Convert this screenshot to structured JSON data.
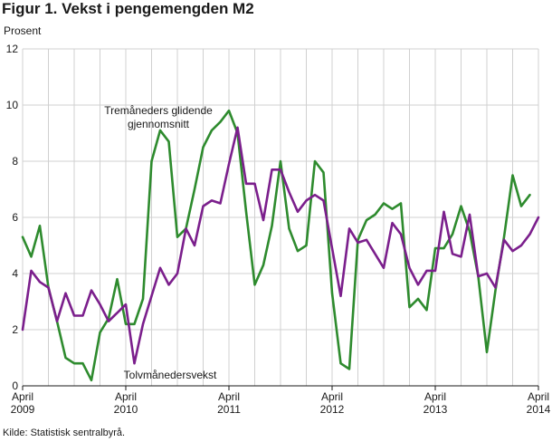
{
  "title": "Figur 1. Vekst i pengemengden M2",
  "source": "Kilde: Statistisk sentralbyrå.",
  "chart_data": {
    "type": "line",
    "title": "Figur 1. Vekst i pengemengden M2",
    "ylabel": "Prosent",
    "xlabel": "",
    "ylim": [
      0,
      12
    ],
    "yticks": [
      0,
      2,
      4,
      6,
      8,
      10,
      12
    ],
    "grid": true,
    "legend": "inline-annotations",
    "x_start": "2009-04",
    "x_tick_labels": [
      {
        "month": "April",
        "year": "2009"
      },
      {
        "month": "April",
        "year": "2010"
      },
      {
        "month": "April",
        "year": "2011"
      },
      {
        "month": "April",
        "year": "2012"
      },
      {
        "month": "April",
        "year": "2013"
      },
      {
        "month": "April",
        "year": "2014"
      }
    ],
    "series": [
      {
        "name": "Tremåneders glidende gjennomsnitt",
        "name_lines": [
          "Tremåneders glidende",
          "gjennomsnitt"
        ],
        "color": "#2e8b2e",
        "values": [
          5.3,
          4.6,
          5.7,
          3.5,
          2.3,
          1.0,
          0.8,
          0.8,
          0.2,
          1.9,
          2.4,
          3.8,
          2.2,
          2.2,
          3.1,
          8.0,
          9.1,
          8.7,
          5.3,
          5.6,
          7.0,
          8.5,
          9.1,
          9.4,
          9.8,
          9.0,
          6.2,
          3.6,
          4.3,
          5.7,
          8.0,
          5.6,
          4.8,
          5.0,
          8.0,
          7.6,
          3.3,
          0.8,
          0.6,
          5.2,
          5.9,
          6.1,
          6.5,
          6.3,
          6.5,
          2.8,
          3.1,
          2.7,
          4.9,
          4.9,
          5.4,
          6.4,
          5.5,
          3.9,
          1.2,
          3.4,
          5.3,
          7.5,
          6.4,
          6.8
        ]
      },
      {
        "name": "Tolvmånedersvekst",
        "color": "#7b1f8c",
        "values": [
          2.0,
          4.1,
          3.7,
          3.5,
          2.3,
          3.3,
          2.5,
          2.5,
          3.4,
          2.9,
          2.3,
          2.6,
          2.9,
          0.8,
          2.2,
          3.2,
          4.2,
          3.6,
          4.0,
          5.6,
          5.0,
          6.4,
          6.6,
          6.5,
          7.9,
          9.2,
          7.2,
          7.2,
          5.9,
          7.7,
          7.7,
          6.9,
          6.2,
          6.6,
          6.8,
          6.6,
          4.9,
          3.2,
          5.6,
          5.1,
          5.2,
          4.7,
          4.2,
          5.8,
          5.4,
          4.2,
          3.6,
          4.1,
          4.1,
          6.2,
          4.7,
          4.6,
          6.1,
          3.9,
          4.0,
          3.5,
          5.2,
          4.8,
          5.0,
          5.4,
          6.0
        ]
      }
    ]
  }
}
